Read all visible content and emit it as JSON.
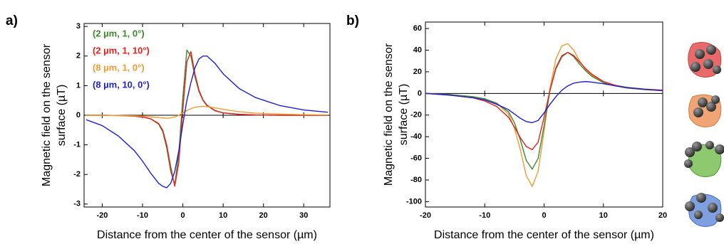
{
  "chart_data": [
    {
      "type": "line",
      "label": "a)",
      "xlabel": "Distance from the center of the sensor (µm)",
      "ylabel": [
        "Magnetic field on the sensor",
        "surface (µT)"
      ],
      "xlim": [
        -24.5,
        36.5
      ],
      "ylim": [
        -3.1,
        3.1
      ],
      "xticks": [
        -20,
        -10,
        0,
        10,
        20,
        30
      ],
      "yticks": [
        -3,
        -2,
        -1,
        0,
        1,
        2,
        3
      ],
      "x": [
        -24,
        -20,
        -16,
        -12,
        -10,
        -8,
        -6,
        -5,
        -4,
        -3,
        -2,
        -1,
        0,
        1,
        2,
        3,
        4,
        5,
        6,
        8,
        10,
        14,
        18,
        24,
        30,
        36
      ],
      "series": [
        {
          "name": "(2 µm,  1,  0°)",
          "color": "#3b8a2e",
          "values": [
            0,
            0,
            -0.01,
            -0.03,
            -0.06,
            -0.12,
            -0.3,
            -0.55,
            -1.1,
            -1.9,
            -2.35,
            -1.3,
            0.6,
            2.2,
            2.0,
            1.3,
            0.8,
            0.5,
            0.32,
            0.15,
            0.08,
            0.03,
            0.01,
            0,
            0,
            0
          ]
        },
        {
          "name": "(2 µm,  1, 10°)",
          "color": "#e8201c",
          "values": [
            0,
            0,
            -0.01,
            -0.03,
            -0.06,
            -0.12,
            -0.28,
            -0.5,
            -1.0,
            -1.75,
            -2.4,
            -1.6,
            0.2,
            1.8,
            2.15,
            1.4,
            0.85,
            0.52,
            0.34,
            0.16,
            0.08,
            0.03,
            0.01,
            0,
            0,
            0
          ]
        },
        {
          "name": "(8 µm,  1,  0°)",
          "color": "#f39a32",
          "values": [
            0,
            0,
            -0.01,
            -0.02,
            -0.03,
            -0.05,
            -0.08,
            -0.09,
            -0.1,
            -0.09,
            -0.06,
            0,
            0.08,
            0.16,
            0.22,
            0.27,
            0.29,
            0.3,
            0.29,
            0.25,
            0.2,
            0.12,
            0.07,
            0.04,
            0.02,
            0.01
          ]
        },
        {
          "name": "(8 µm, 10,  0°)",
          "color": "#1f1fd6",
          "values": [
            -0.15,
            -0.35,
            -0.7,
            -1.2,
            -1.55,
            -1.95,
            -2.3,
            -2.4,
            -2.45,
            -2.3,
            -1.9,
            -1.2,
            -0.3,
            0.5,
            1.1,
            1.6,
            1.9,
            2.0,
            2.0,
            1.75,
            1.4,
            0.9,
            0.6,
            0.33,
            0.18,
            0.1
          ]
        }
      ]
    },
    {
      "type": "line",
      "label": "b)",
      "xlabel": "Distance from the center of the sensor (µm)",
      "ylabel": [
        "Magnetic field on the sensor",
        "surface (µT)"
      ],
      "xlim": [
        -20,
        20
      ],
      "ylim": [
        -105,
        66
      ],
      "xticks": [
        -20,
        -10,
        0,
        10,
        20
      ],
      "yticks": [
        -100,
        -80,
        -60,
        -40,
        -20,
        0,
        20,
        40,
        60
      ],
      "x": [
        -20,
        -16,
        -12,
        -10,
        -8,
        -6,
        -5,
        -4,
        -3,
        -2,
        -1,
        0,
        1,
        2,
        3,
        4,
        5,
        6,
        7,
        8,
        10,
        12,
        14,
        17,
        20
      ],
      "series": [
        {
          "color": "#f39a32",
          "values": [
            0,
            -1,
            -3,
            -5,
            -9,
            -19,
            -32,
            -52,
            -76,
            -86,
            -72,
            -35,
            5,
            32,
            44,
            46,
            40,
            30,
            22,
            17,
            10,
            7,
            5,
            3.5,
            2.5
          ]
        },
        {
          "color": "#3b8a2e",
          "values": [
            0,
            -1,
            -3,
            -5,
            -9,
            -17,
            -27,
            -43,
            -62,
            -70,
            -60,
            -30,
            3,
            24,
            35,
            38,
            34,
            27,
            21,
            16,
            10,
            7,
            5,
            3.5,
            2.5
          ]
        },
        {
          "color": "#e8201c",
          "values": [
            0,
            -1.5,
            -4,
            -7,
            -12,
            -22,
            -31,
            -41,
            -49,
            -52,
            -45,
            -22,
            3,
            23,
            34,
            38,
            35,
            29,
            23,
            18,
            11,
            7.5,
            5.5,
            3.8,
            2.5
          ]
        },
        {
          "color": "#1f1fd6",
          "values": [
            0,
            -1.5,
            -4,
            -6,
            -10,
            -15,
            -19,
            -23,
            -26,
            -27,
            -25,
            -18,
            -10,
            -3,
            3,
            7,
            9.5,
            10.5,
            11,
            10.5,
            9,
            7,
            5.5,
            4,
            3
          ]
        }
      ]
    }
  ]
}
